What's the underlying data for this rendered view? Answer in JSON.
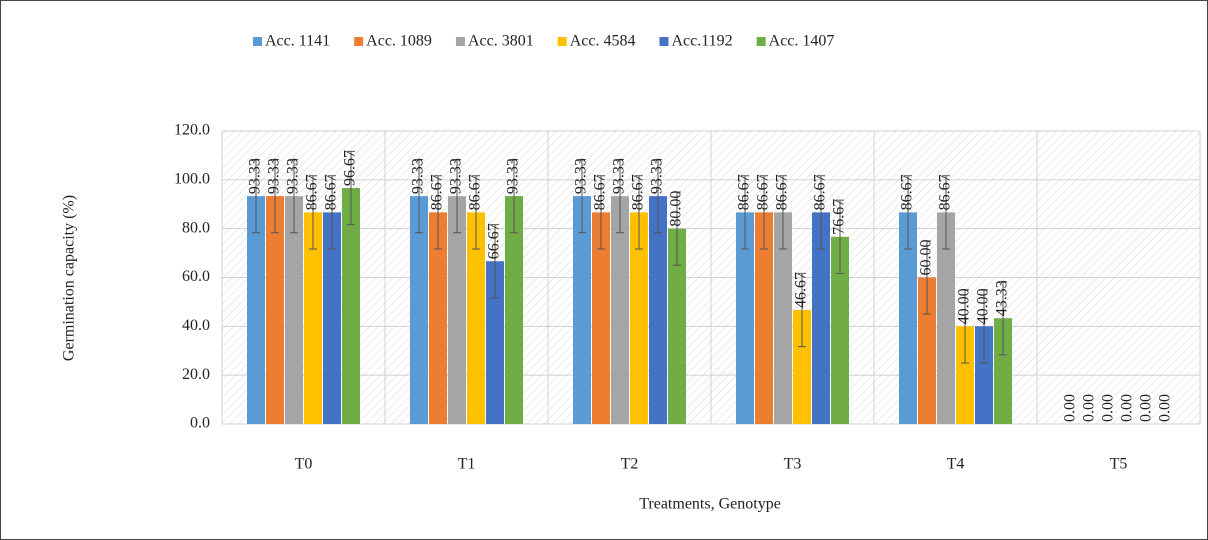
{
  "chart_data": {
    "type": "bar",
    "x_label": "Treatments, Genotype",
    "y_label": "Germination capacity (%)",
    "categories": [
      "T0",
      "T1",
      "T2",
      "T3",
      "T4",
      "T5"
    ],
    "series": [
      {
        "name": "Acc. 1141",
        "color": "#5b9bd5",
        "values": [
          93.33,
          93.33,
          93.33,
          86.67,
          86.67,
          0
        ],
        "value_labels": [
          "93.33",
          "93.33",
          "93.33",
          "86.67",
          "86.67",
          "0.00"
        ],
        "errors": [
          15,
          15,
          15,
          15,
          15,
          0
        ]
      },
      {
        "name": "Acc. 1089",
        "color": "#ed7d31",
        "values": [
          93.33,
          86.67,
          86.67,
          86.67,
          60,
          0
        ],
        "value_labels": [
          "93.33",
          "86.67",
          "86.67",
          "86.67",
          "60.00",
          "0.00"
        ],
        "errors": [
          15,
          15,
          15,
          15,
          15,
          0
        ]
      },
      {
        "name": "Acc. 3801",
        "color": "#a5a5a5",
        "values": [
          93.33,
          93.33,
          93.33,
          86.67,
          86.67,
          0
        ],
        "value_labels": [
          "93.33",
          "93.33",
          "93.33",
          "86.67",
          "86.67",
          "0.00"
        ],
        "errors": [
          15,
          15,
          15,
          15,
          15,
          0
        ]
      },
      {
        "name": "Acc. 4584",
        "color": "#ffc000",
        "values": [
          86.67,
          86.67,
          86.67,
          46.67,
          40,
          0
        ],
        "value_labels": [
          "86.67",
          "86.67",
          "86.67",
          "46.67",
          "40.00",
          "0.00"
        ],
        "errors": [
          15,
          15,
          15,
          15,
          15,
          0
        ]
      },
      {
        "name": "Acc.1192",
        "color": "#4472c4",
        "values": [
          86.67,
          66.67,
          93.33,
          86.67,
          40,
          0
        ],
        "value_labels": [
          "86.67",
          "66.67",
          "93.33",
          "86.67",
          "40.00",
          "0.00"
        ],
        "errors": [
          15,
          15,
          15,
          15,
          15,
          0
        ]
      },
      {
        "name": "Acc. 1407",
        "color": "#70ad47",
        "values": [
          96.67,
          93.33,
          80,
          76.67,
          43.33,
          0
        ],
        "value_labels": [
          "96.67",
          "93.33",
          "80.00",
          "76.67",
          "43.33",
          "0.00"
        ],
        "errors": [
          15,
          15,
          15,
          15,
          15,
          0
        ]
      }
    ],
    "ylim": [
      0,
      120
    ],
    "yticks": [
      {
        "value": 0,
        "label": "0.0"
      },
      {
        "value": 20,
        "label": "20.0"
      },
      {
        "value": 40,
        "label": "40.0"
      },
      {
        "value": 60,
        "label": "60.0"
      },
      {
        "value": 80,
        "label": "80.0"
      },
      {
        "value": 100,
        "label": "100.0"
      },
      {
        "value": 120,
        "label": "120.0"
      }
    ],
    "grid": true,
    "legend": "top"
  }
}
